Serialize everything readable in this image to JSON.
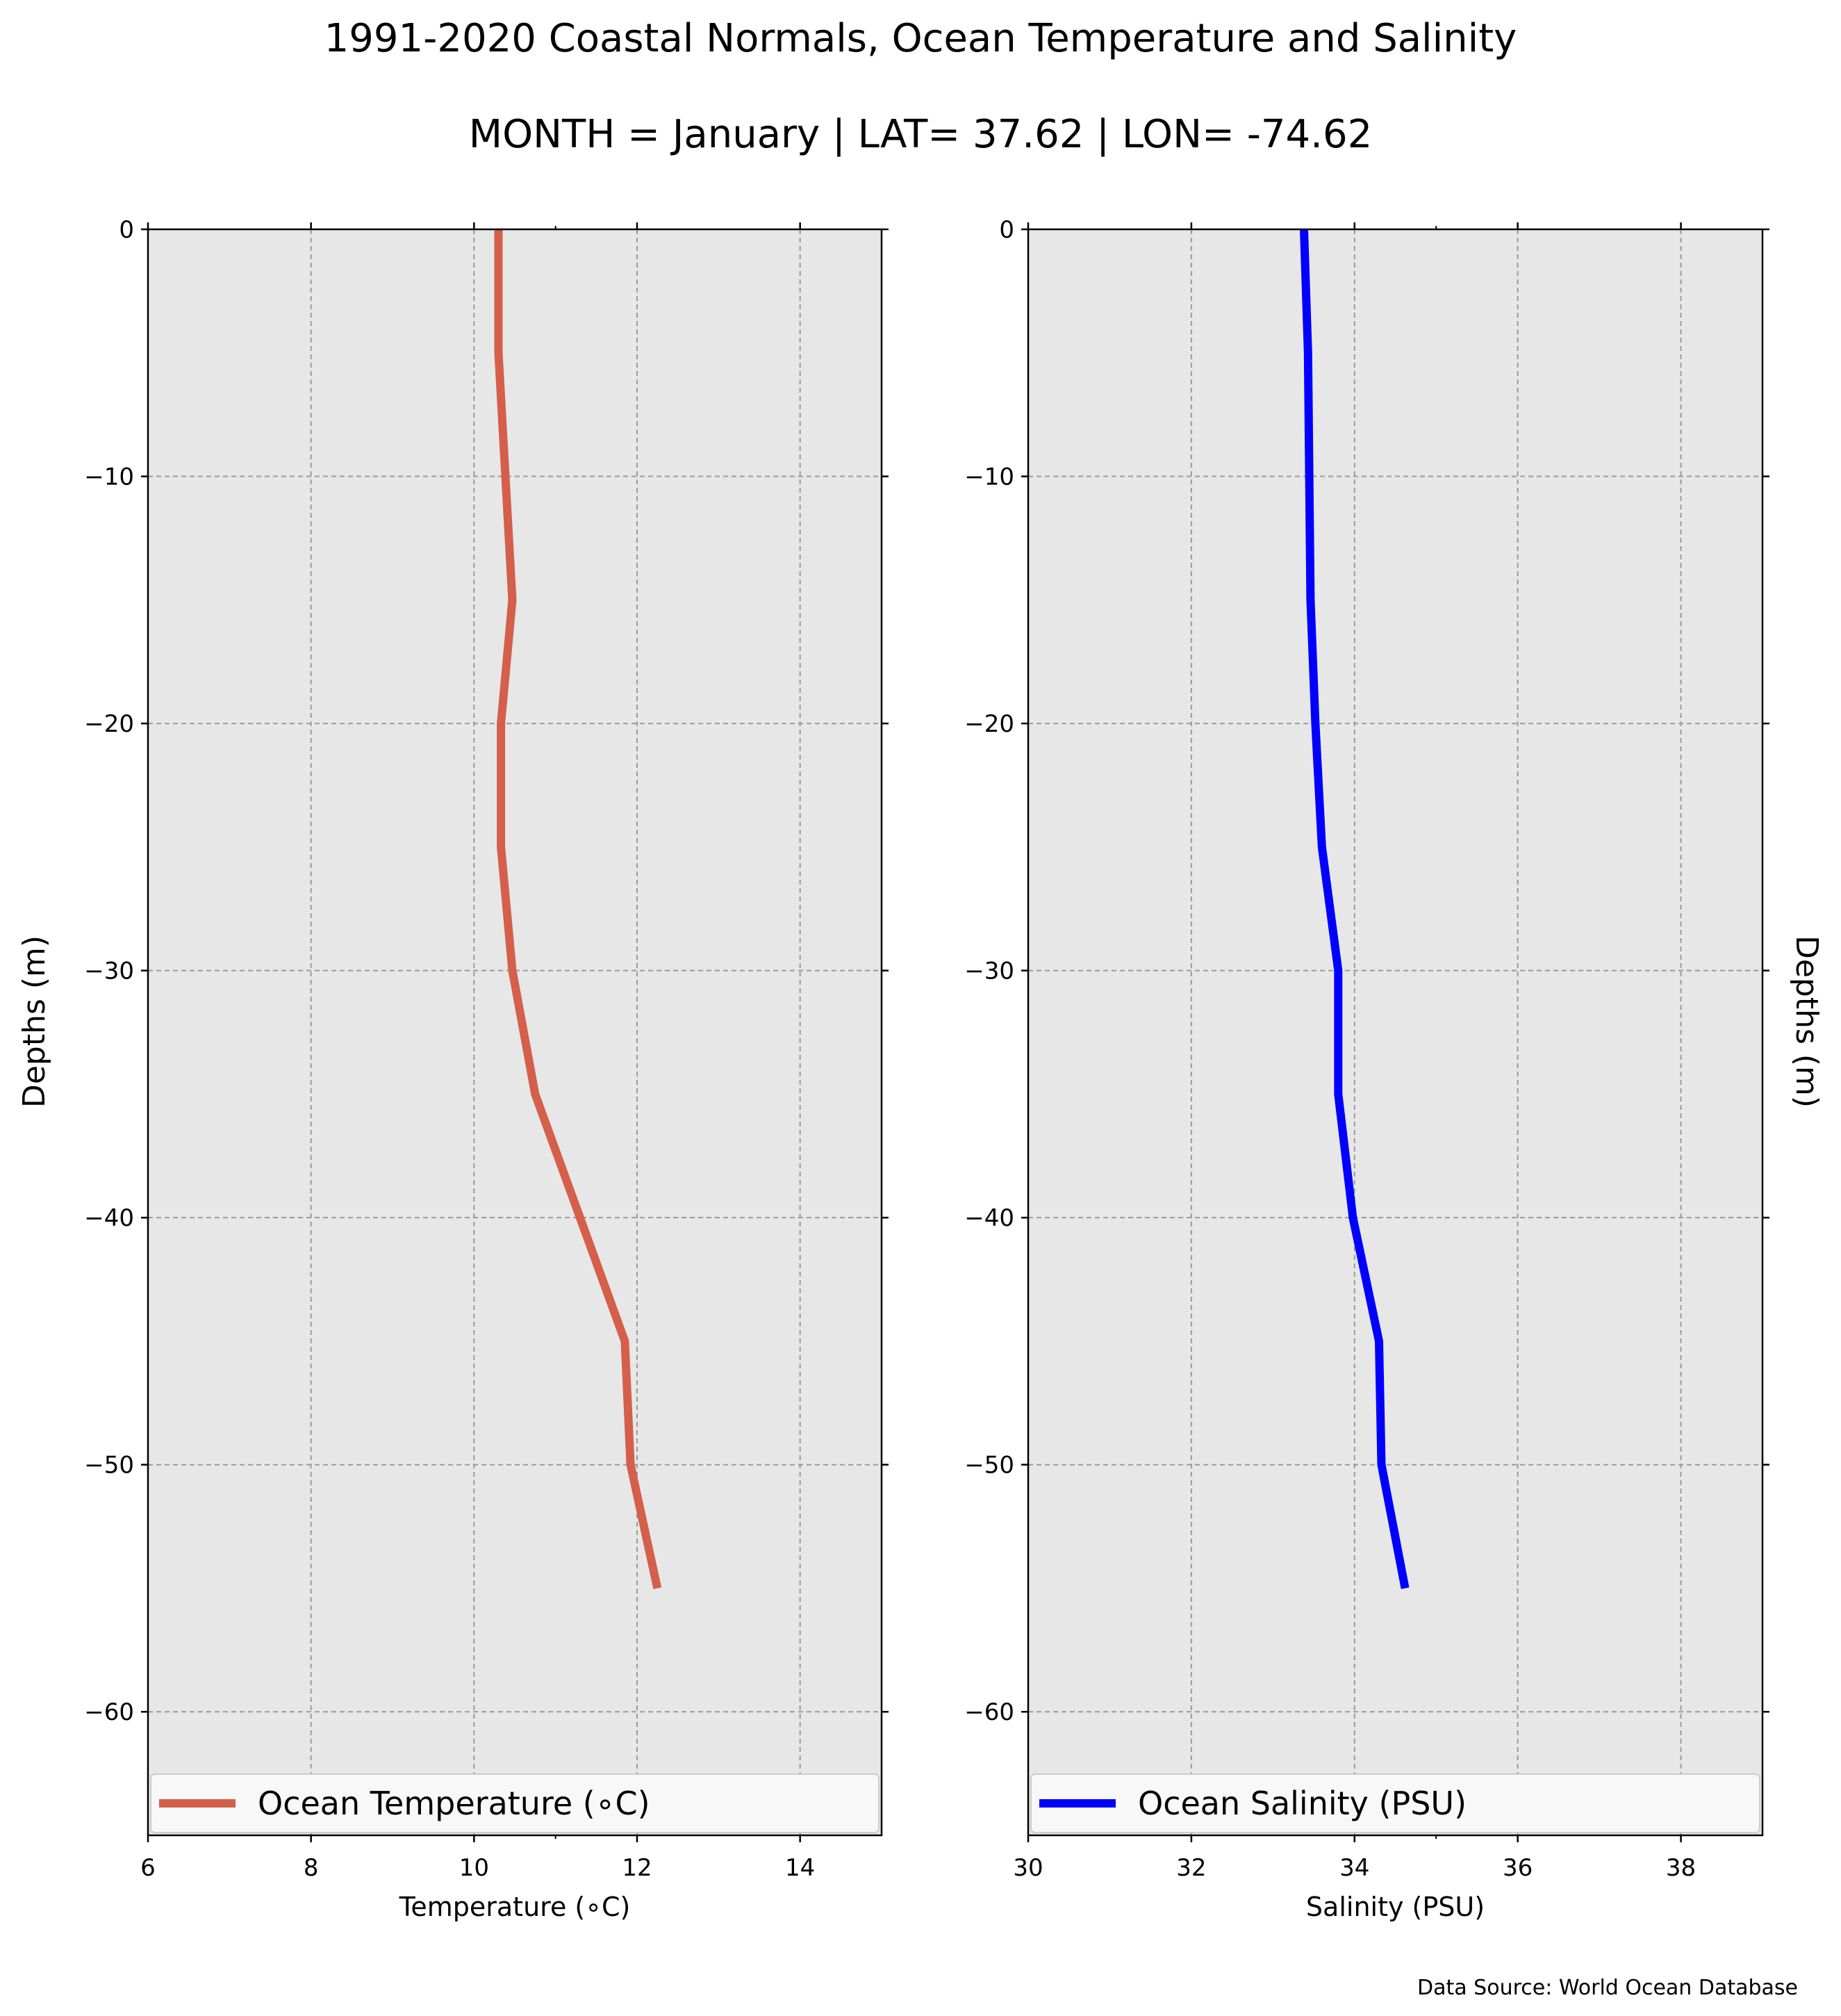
{
  "title": "1991-2020 Coastal Normals, Ocean Temperature and Salinity",
  "subtitle": "MONTH = January | LAT= 37.62 | LON= -74.62",
  "source": "Data Source: World Ocean Database",
  "chart_data": [
    {
      "type": "line",
      "xlabel": "Temperature (∘C)",
      "ylabel": "Depths (m)",
      "xlim": [
        6,
        15
      ],
      "ylim": [
        -65,
        0
      ],
      "xticks": [
        "6",
        "8",
        "10",
        "12",
        "14"
      ],
      "xtick_values": [
        6,
        8,
        10,
        12,
        14
      ],
      "yticks": [
        "0",
        "−10",
        "−20",
        "−30",
        "−40",
        "−50",
        "−60"
      ],
      "ytick_values": [
        0,
        -10,
        -20,
        -30,
        -40,
        -50,
        -60
      ],
      "grid": true,
      "legend": "bottom",
      "series": [
        {
          "name": "Ocean Temperature (∘C)",
          "color": "#d45f4b",
          "x": [
            10.3,
            10.3,
            10.47,
            10.33,
            10.33,
            10.47,
            10.75,
            11.3,
            11.85,
            11.92,
            12.25
          ],
          "y": [
            0,
            -5,
            -15,
            -20,
            -25,
            -30,
            -35,
            -40,
            -45,
            -50,
            -55
          ]
        }
      ]
    },
    {
      "type": "line",
      "xlabel": "Salinity (PSU)",
      "ylabel": "Depths (m)",
      "xlim": [
        30,
        39
      ],
      "ylim": [
        -65,
        0
      ],
      "xticks": [
        "30",
        "32",
        "34",
        "36",
        "38"
      ],
      "xtick_values": [
        30,
        32,
        34,
        36,
        38
      ],
      "yticks": [
        "0",
        "−10",
        "−20",
        "−30",
        "−40",
        "−50",
        "−60"
      ],
      "ytick_values": [
        0,
        -10,
        -20,
        -30,
        -40,
        -50,
        -60
      ],
      "grid": true,
      "legend": "bottom",
      "series": [
        {
          "name": "Ocean Salinity (PSU)",
          "color": "#0000ff",
          "x": [
            33.38,
            33.43,
            33.46,
            33.52,
            33.6,
            33.8,
            33.8,
            33.98,
            34.3,
            34.33,
            34.62
          ],
          "y": [
            0,
            -5,
            -15,
            -20,
            -25,
            -30,
            -35,
            -40,
            -45,
            -50,
            -55
          ]
        }
      ]
    }
  ]
}
